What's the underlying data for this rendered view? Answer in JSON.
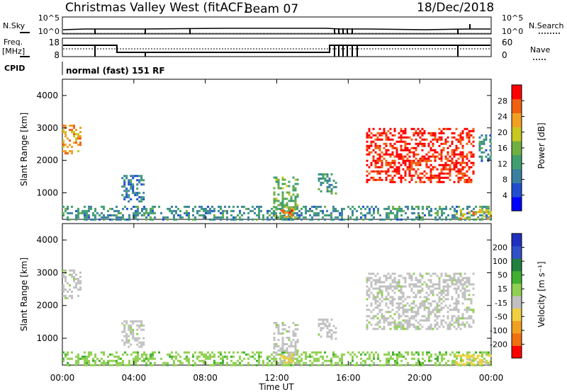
{
  "header": {
    "station": "Christmas Valley West (fitACF)",
    "beam": "Beam 07",
    "date": "18/Dec/2018"
  },
  "top_panels": {
    "nsky_label": "N.Sky",
    "nsky_ticks": [
      "10^5",
      "10^0"
    ],
    "nsearch_label": "N.Search",
    "nsearch_ticks": [
      "10^5",
      "10^0"
    ],
    "freq_label_1": "Freq.",
    "freq_label_2": "[MHz]",
    "freq_ticks": [
      "18",
      "8"
    ],
    "nave_label": "Nave",
    "nave_ticks": [
      "60",
      "0"
    ],
    "cpid_label": "CPID",
    "cpid_value": "normal (fast) 151 RF"
  },
  "chart_data": [
    {
      "type": "heatmap",
      "title": "",
      "xlabel": "Time UT",
      "ylabel": "Slant Range [km]",
      "x_ticks": [
        "00:00",
        "04:00",
        "08:00",
        "12:00",
        "16:00",
        "20:00",
        "00:00"
      ],
      "x_range_hours": [
        0,
        24
      ],
      "y_ticks": [
        "1000",
        "2000",
        "3000",
        "4000"
      ],
      "y_range_km": [
        180,
        4500
      ],
      "colorbar": {
        "label": "Power [dB]",
        "ticks": [
          "4",
          "8",
          "12",
          "16",
          "20",
          "24",
          "28"
        ],
        "range": [
          0,
          30
        ],
        "colors": [
          "#0000ff",
          "#1f4fd0",
          "#3a7fa0",
          "#3f9f6f",
          "#70b040",
          "#c8c820",
          "#f0a020",
          "#f06010",
          "#ff0000"
        ]
      },
      "regions": [
        {
          "t": [
            0.0,
            1.0
          ],
          "r": [
            2200,
            3100
          ],
          "value": 22
        },
        {
          "t": [
            3.3,
            4.5
          ],
          "r": [
            750,
            1550
          ],
          "value": 8
        },
        {
          "t": [
            0.0,
            24.0
          ],
          "r": [
            200,
            600
          ],
          "value": 10
        },
        {
          "t": [
            11.8,
            13.2
          ],
          "r": [
            250,
            1500
          ],
          "value": 14
        },
        {
          "t": [
            12.2,
            12.8
          ],
          "r": [
            250,
            550
          ],
          "value": 26
        },
        {
          "t": [
            14.3,
            15.3
          ],
          "r": [
            1000,
            1600
          ],
          "value": 11
        },
        {
          "t": [
            17.0,
            23.0
          ],
          "r": [
            1300,
            3000
          ],
          "value": 28
        },
        {
          "t": [
            22.0,
            24.0
          ],
          "r": [
            200,
            500
          ],
          "value": 20
        },
        {
          "t": [
            23.3,
            24.0
          ],
          "r": [
            2000,
            2800
          ],
          "value": 10
        }
      ]
    },
    {
      "type": "heatmap",
      "title": "",
      "xlabel": "Time UT",
      "ylabel": "Slant Range [km]",
      "x_ticks": [
        "00:00",
        "04:00",
        "08:00",
        "12:00",
        "16:00",
        "20:00",
        "00:00"
      ],
      "x_range_hours": [
        0,
        24
      ],
      "y_ticks": [
        "1000",
        "2000",
        "3000",
        "4000"
      ],
      "y_range_km": [
        180,
        4500
      ],
      "colorbar": {
        "label": "Velocity [m s⁻¹]",
        "ticks": [
          "200",
          "100",
          "50",
          "15",
          "-15",
          "-50",
          "-100",
          "-200"
        ],
        "range": [
          -250,
          250
        ],
        "colors": [
          "#2030c0",
          "#3050c8",
          "#208040",
          "#40b030",
          "#8fd050",
          "#c0c0c0",
          "#f0d040",
          "#f0a020",
          "#f07010",
          "#ff0000"
        ]
      },
      "regions": [
        {
          "t": [
            0.0,
            1.0
          ],
          "r": [
            2200,
            3100
          ],
          "value": 0
        },
        {
          "t": [
            3.3,
            4.5
          ],
          "r": [
            750,
            1550
          ],
          "value": 0
        },
        {
          "t": [
            0.0,
            24.0
          ],
          "r": [
            200,
            600
          ],
          "value": 40
        },
        {
          "t": [
            11.8,
            13.2
          ],
          "r": [
            250,
            1500
          ],
          "value": 0
        },
        {
          "t": [
            12.2,
            12.8
          ],
          "r": [
            250,
            550
          ],
          "value": -80
        },
        {
          "t": [
            14.3,
            15.3
          ],
          "r": [
            1000,
            1600
          ],
          "value": 0
        },
        {
          "t": [
            17.0,
            23.0
          ],
          "r": [
            1300,
            3000
          ],
          "value": 0
        },
        {
          "t": [
            22.0,
            24.0
          ],
          "r": [
            200,
            500
          ],
          "value": -60
        }
      ]
    }
  ]
}
